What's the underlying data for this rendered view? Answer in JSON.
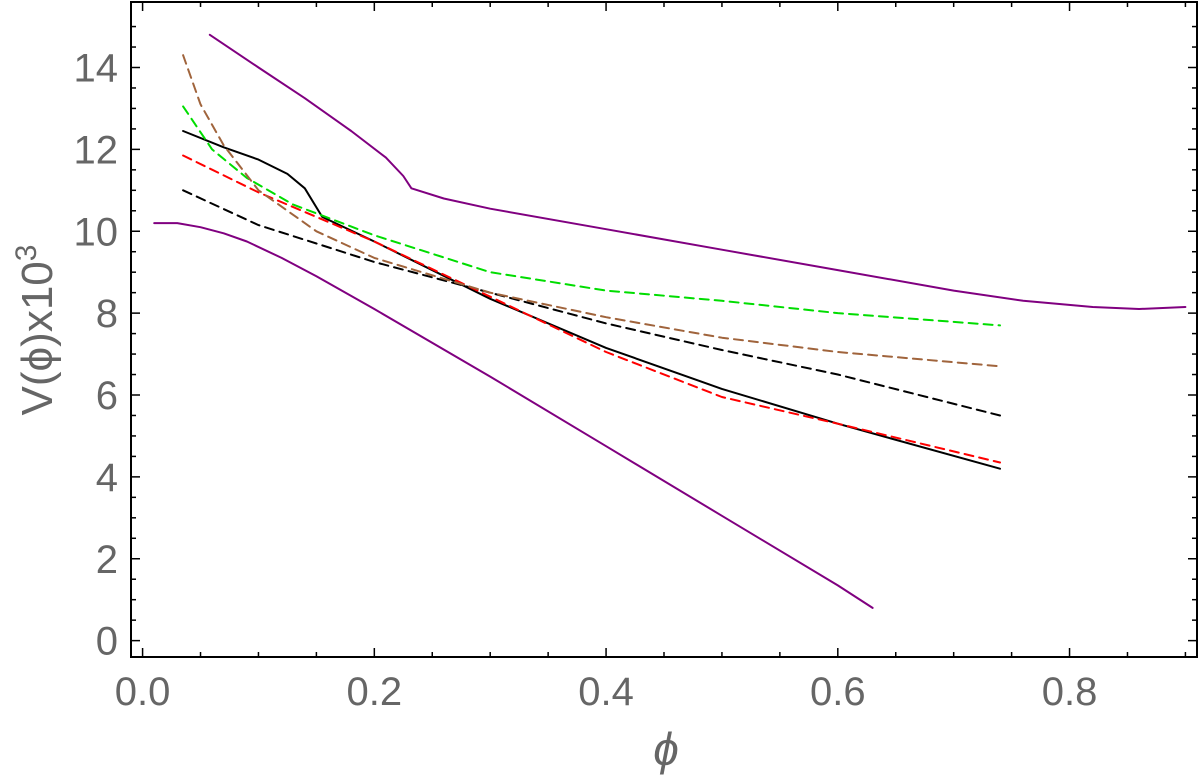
{
  "chart_data": {
    "type": "line",
    "xlabel": "ϕ",
    "ylabel": {
      "base": "V(ϕ)x10",
      "exponent": "3"
    },
    "xlim": [
      -0.01,
      0.91
    ],
    "ylim": [
      -0.4,
      15.6
    ],
    "xticks": [
      0.0,
      0.2,
      0.4,
      0.6,
      0.8
    ],
    "xtick_labels": [
      "0.0",
      "0.2",
      "0.4",
      "0.6",
      "0.8"
    ],
    "yticks": [
      0,
      2,
      4,
      6,
      8,
      10,
      12,
      14
    ],
    "ytick_labels": [
      "0",
      "2",
      "4",
      "6",
      "8",
      "10",
      "12",
      "14"
    ],
    "grid": false,
    "legend": "none",
    "series": [
      {
        "color": "#800080",
        "dash": "solid",
        "points": [
          [
            0.058,
            14.8
          ],
          [
            0.1,
            14.0
          ],
          [
            0.14,
            13.25
          ],
          [
            0.18,
            12.45
          ],
          [
            0.21,
            11.8
          ],
          [
            0.225,
            11.35
          ],
          [
            0.232,
            11.05
          ],
          [
            0.26,
            10.8
          ],
          [
            0.3,
            10.55
          ],
          [
            0.4,
            10.05
          ],
          [
            0.5,
            9.55
          ],
          [
            0.6,
            9.05
          ],
          [
            0.7,
            8.55
          ],
          [
            0.76,
            8.3
          ],
          [
            0.82,
            8.15
          ],
          [
            0.86,
            8.1
          ],
          [
            0.9,
            8.15
          ]
        ]
      },
      {
        "color": "#800080",
        "dash": "solid",
        "points": [
          [
            0.01,
            10.2
          ],
          [
            0.03,
            10.2
          ],
          [
            0.05,
            10.1
          ],
          [
            0.07,
            9.95
          ],
          [
            0.09,
            9.75
          ],
          [
            0.12,
            9.35
          ],
          [
            0.15,
            8.9
          ],
          [
            0.2,
            8.1
          ],
          [
            0.3,
            6.45
          ],
          [
            0.4,
            4.75
          ],
          [
            0.5,
            3.05
          ],
          [
            0.6,
            1.35
          ],
          [
            0.63,
            0.8
          ]
        ]
      },
      {
        "color": "#000000",
        "dash": "solid",
        "points": [
          [
            0.035,
            12.45
          ],
          [
            0.07,
            12.05
          ],
          [
            0.1,
            11.75
          ],
          [
            0.125,
            11.4
          ],
          [
            0.14,
            11.05
          ],
          [
            0.155,
            10.35
          ],
          [
            0.2,
            9.75
          ],
          [
            0.3,
            8.35
          ],
          [
            0.4,
            7.15
          ],
          [
            0.5,
            6.15
          ],
          [
            0.6,
            5.3
          ],
          [
            0.74,
            4.2
          ]
        ]
      },
      {
        "color": "#000000",
        "dash": "dashed",
        "points": [
          [
            0.035,
            11.0
          ],
          [
            0.1,
            10.15
          ],
          [
            0.15,
            9.7
          ],
          [
            0.2,
            9.25
          ],
          [
            0.3,
            8.5
          ],
          [
            0.4,
            7.75
          ],
          [
            0.5,
            7.1
          ],
          [
            0.6,
            6.5
          ],
          [
            0.74,
            5.5
          ]
        ]
      },
      {
        "color": "#ff0000",
        "dash": "dashed",
        "points": [
          [
            0.035,
            11.85
          ],
          [
            0.1,
            10.95
          ],
          [
            0.15,
            10.35
          ],
          [
            0.2,
            9.75
          ],
          [
            0.3,
            8.4
          ],
          [
            0.4,
            7.05
          ],
          [
            0.5,
            5.95
          ],
          [
            0.6,
            5.3
          ],
          [
            0.74,
            4.35
          ]
        ]
      },
      {
        "color": "#00dd00",
        "dash": "dashed",
        "points": [
          [
            0.035,
            13.05
          ],
          [
            0.06,
            12.0
          ],
          [
            0.09,
            11.3
          ],
          [
            0.13,
            10.65
          ],
          [
            0.2,
            9.9
          ],
          [
            0.3,
            9.0
          ],
          [
            0.4,
            8.55
          ],
          [
            0.5,
            8.3
          ],
          [
            0.6,
            8.0
          ],
          [
            0.74,
            7.7
          ]
        ]
      },
      {
        "color": "#a0643c",
        "dash": "dashed",
        "points": [
          [
            0.035,
            14.3
          ],
          [
            0.05,
            13.1
          ],
          [
            0.07,
            12.1
          ],
          [
            0.1,
            11.0
          ],
          [
            0.15,
            10.0
          ],
          [
            0.2,
            9.35
          ],
          [
            0.3,
            8.5
          ],
          [
            0.4,
            7.9
          ],
          [
            0.5,
            7.4
          ],
          [
            0.6,
            7.05
          ],
          [
            0.74,
            6.7
          ]
        ]
      }
    ]
  }
}
